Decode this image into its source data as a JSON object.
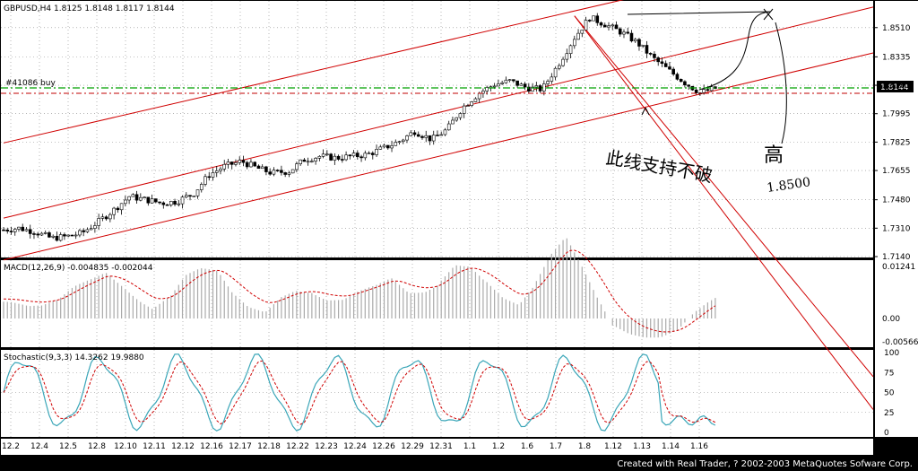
{
  "main": {
    "symbol_line": "GBPUSD,H4  1.8125 1.8148 1.8117 1.8144",
    "order_label": "#41086 buy",
    "price_box": "1.8144",
    "y_ticks": [
      "1.8510",
      "1.8335",
      "1.8165",
      "1.7995",
      "1.7825",
      "1.7655",
      "1.7480",
      "1.7310",
      "1.7140"
    ],
    "annotations": {
      "support": "此线支持不破",
      "high": "高",
      "target": "1.8500"
    }
  },
  "macd": {
    "label": "MACD(12,26,9)  -0.004835  -0.002044",
    "y_ticks": [
      "0.01241",
      "0.00",
      "-0.00566"
    ]
  },
  "stoch": {
    "label": "Stochastic(9,3,3)  14.3262  19.9880",
    "y_ticks": [
      "100",
      "75",
      "50",
      "25",
      "0"
    ]
  },
  "x_ticks": [
    "12.2",
    "12.4",
    "12.5",
    "12.8",
    "12.10",
    "12.11",
    "12.12",
    "12.16",
    "12.17",
    "12.18",
    "12.22",
    "12.23",
    "12.24",
    "12.26",
    "12.29",
    "12.31",
    "1.1",
    "1.2",
    "1.6",
    "1.7",
    "1.8",
    "1.12",
    "1.13",
    "1.14",
    "1.16"
  ],
  "footer": "Created with Real Trader, ? 2002-2003 MetaQuotes Sofware Corp.",
  "chart_data": {
    "type": "candlestick",
    "symbol": "GBPUSD",
    "timeframe": "H4",
    "last_ohlc": {
      "open": 1.8125,
      "high": 1.8148,
      "low": 1.8117,
      "close": 1.8144
    },
    "price_ylim": [
      1.714,
      1.86
    ],
    "close_path": [
      [
        0,
        1.73
      ],
      [
        8,
        1.731
      ],
      [
        16,
        1.729
      ],
      [
        25,
        1.725
      ],
      [
        33,
        1.726
      ],
      [
        41,
        1.728
      ],
      [
        50,
        1.735
      ],
      [
        58,
        1.742
      ],
      [
        66,
        1.75
      ],
      [
        75,
        1.748
      ],
      [
        83,
        1.746
      ],
      [
        91,
        1.747
      ],
      [
        100,
        1.752
      ],
      [
        108,
        1.763
      ],
      [
        116,
        1.768
      ],
      [
        125,
        1.771
      ],
      [
        133,
        1.767
      ],
      [
        141,
        1.764
      ],
      [
        150,
        1.765
      ],
      [
        158,
        1.772
      ],
      [
        166,
        1.774
      ],
      [
        175,
        1.773
      ],
      [
        183,
        1.774
      ],
      [
        191,
        1.775
      ],
      [
        200,
        1.779
      ],
      [
        208,
        1.783
      ],
      [
        216,
        1.789
      ],
      [
        225,
        1.784
      ],
      [
        233,
        1.79
      ],
      [
        241,
        1.803
      ],
      [
        250,
        1.812
      ],
      [
        258,
        1.817
      ],
      [
        266,
        1.819
      ],
      [
        275,
        1.815
      ],
      [
        283,
        1.814
      ],
      [
        291,
        1.828
      ],
      [
        300,
        1.845
      ],
      [
        308,
        1.857
      ],
      [
        316,
        1.853
      ],
      [
        325,
        1.848
      ],
      [
        333,
        1.842
      ],
      [
        341,
        1.833
      ],
      [
        350,
        1.825
      ],
      [
        358,
        1.818
      ],
      [
        366,
        1.812
      ],
      [
        375,
        1.815
      ]
    ],
    "channel_lines": [
      {
        "name": "upper",
        "from": [
          0,
          1.782
        ],
        "to": [
          380,
          1.882
        ]
      },
      {
        "name": "middle",
        "from": [
          0,
          1.737
        ],
        "to": [
          380,
          1.842
        ]
      },
      {
        "name": "lower",
        "from": [
          0,
          1.712
        ],
        "to": [
          380,
          1.815
        ]
      },
      {
        "name": "down-1",
        "from": [
          300,
          1.858
        ],
        "to": [
          380,
          1.748
        ]
      },
      {
        "name": "down-2",
        "from": [
          300,
          1.858
        ],
        "to": [
          380,
          1.738
        ]
      }
    ],
    "order_level": 1.8144,
    "macd": {
      "name": "MACD(12,26,9)",
      "main": -0.004835,
      "signal": -0.002044,
      "ylim": [
        -0.00566,
        0.01241
      ]
    },
    "stochastic": {
      "name": "Stochastic(9,3,3)",
      "k": 14.3262,
      "d": 19.988,
      "ylim": [
        0,
        100
      ]
    }
  }
}
